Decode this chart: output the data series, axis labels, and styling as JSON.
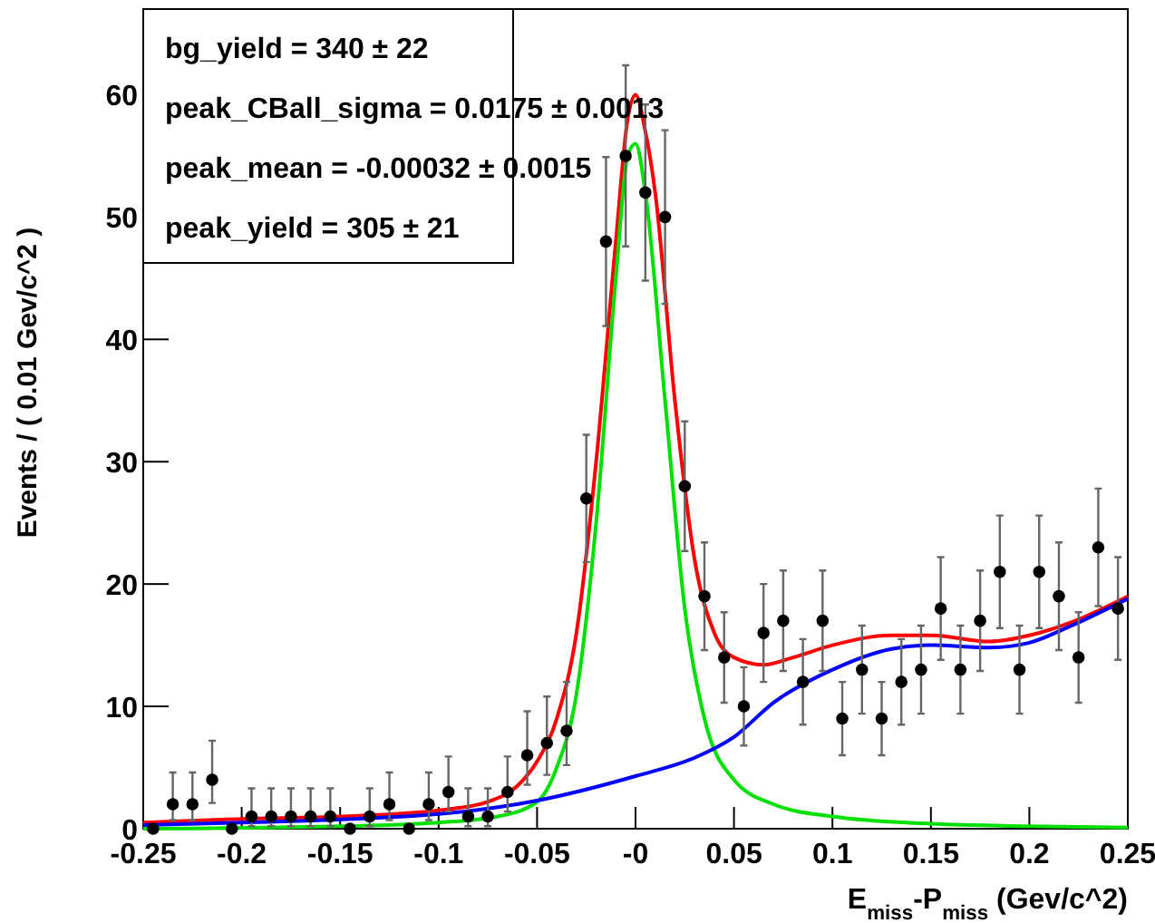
{
  "chart_data": {
    "type": "scatter",
    "xlabel": "E$_{miss}$-P$_{miss}$ (Gev/c^2)",
    "ylabel": "Events / ( 0.01 Gev/c^2 )",
    "xlim": [
      -0.25,
      0.25
    ],
    "xticks": [
      -0.25,
      -0.2,
      -0.15,
      -0.1,
      -0.05,
      {
        "value": 0,
        "label": "-0"
      },
      0.05,
      0.1,
      0.15,
      0.2,
      0.25
    ],
    "ylim": [
      0,
      67
    ],
    "yticks": [
      0,
      10,
      20,
      30,
      40,
      50,
      60
    ],
    "grid": false,
    "annotations": [
      "bg_yield = 340 ± 22",
      "peak_CBall_sigma = 0.0175 ± 0.0013",
      "peak_mean = -0.00032 ± 0.0015",
      "peak_yield = 305 ± 21"
    ],
    "series": [
      {
        "type": "scatter",
        "color": "#000000",
        "marker": "circle",
        "x": [
          -0.245,
          -0.235,
          -0.225,
          -0.215,
          -0.205,
          -0.195,
          -0.185,
          -0.175,
          -0.165,
          -0.155,
          -0.145,
          -0.135,
          -0.125,
          -0.115,
          -0.105,
          -0.095,
          -0.085,
          -0.075,
          -0.065,
          -0.055,
          -0.045,
          -0.035,
          -0.025,
          -0.015,
          -0.005,
          0.005,
          0.015,
          0.025,
          0.035,
          0.045,
          0.055,
          0.065,
          0.075,
          0.085,
          0.095,
          0.105,
          0.115,
          0.125,
          0.135,
          0.145,
          0.155,
          0.165,
          0.175,
          0.185,
          0.195,
          0.205,
          0.215,
          0.225,
          0.235,
          0.245
        ],
        "values": [
          0,
          2,
          2,
          4,
          0,
          1,
          1,
          1,
          1,
          1,
          0,
          1,
          2,
          0,
          2,
          3,
          1,
          1,
          3,
          6,
          7,
          8,
          27,
          48,
          55,
          52,
          50,
          28,
          19,
          14,
          10,
          16,
          17,
          12,
          17,
          9,
          13,
          9,
          12,
          13,
          18,
          13,
          17,
          21,
          13,
          21,
          19,
          14,
          23,
          18
        ],
        "errors": [
          null,
          [
            0.7,
            4.6
          ],
          [
            0.7,
            4.6
          ],
          [
            2.1,
            7.2
          ],
          null,
          [
            0.2,
            3.3
          ],
          [
            0.2,
            3.3
          ],
          [
            0.2,
            3.3
          ],
          [
            0.2,
            3.3
          ],
          [
            0.2,
            3.3
          ],
          null,
          [
            0.2,
            3.3
          ],
          [
            0.7,
            4.6
          ],
          null,
          [
            0.7,
            4.6
          ],
          [
            1.4,
            5.9
          ],
          [
            0.2,
            3.3
          ],
          [
            0.2,
            3.3
          ],
          [
            1.4,
            5.9
          ],
          [
            3.6,
            9.6
          ],
          [
            4.4,
            10.8
          ],
          [
            5.2,
            12
          ],
          5.2,
          6.9,
          7.4,
          7.2,
          7.1,
          5.3,
          4.4,
          3.7,
          3.2,
          4,
          4.1,
          3.5,
          4.1,
          3,
          3.6,
          3,
          3.5,
          3.6,
          4.2,
          3.6,
          4.1,
          4.6,
          3.6,
          4.6,
          4.4,
          3.7,
          4.8,
          4.2
        ]
      },
      {
        "type": "line",
        "color": "#ff0000",
        "marker": "none",
        "line_style": "solid",
        "x": [
          -0.25,
          -0.2,
          -0.15,
          -0.1,
          -0.075,
          -0.06,
          -0.05,
          -0.04,
          -0.03,
          -0.02,
          -0.01,
          -0.004,
          0,
          0.005,
          0.01,
          0.02,
          0.03,
          0.04,
          0.05,
          0.065,
          0.08,
          0.1,
          0.13,
          0.15,
          0.18,
          0.2,
          0.22,
          0.25
        ],
        "values": [
          0.5,
          0.8,
          1,
          1.5,
          2.2,
          3.5,
          5.5,
          9,
          16,
          30,
          48,
          58,
          60,
          57,
          52,
          35,
          22,
          16,
          14,
          13.4,
          14,
          15,
          15.8,
          15.8,
          15.3,
          15.8,
          16.8,
          19
        ]
      },
      {
        "type": "line",
        "color": "#00e000",
        "marker": "none",
        "line_style": "solid",
        "x": [
          -0.25,
          -0.15,
          -0.1,
          -0.07,
          -0.05,
          -0.04,
          -0.03,
          -0.02,
          -0.01,
          -0.004,
          0,
          0.005,
          0.015,
          0.025,
          0.035,
          0.05,
          0.07,
          0.1,
          0.15,
          0.2,
          0.25
        ],
        "values": [
          0,
          0.2,
          0.5,
          1,
          2.2,
          5,
          11,
          25,
          45,
          55,
          56,
          52,
          35,
          18,
          9,
          4,
          2,
          1,
          0.4,
          0.2,
          0.1
        ]
      },
      {
        "type": "line",
        "color": "#0000ff",
        "marker": "none",
        "line_style": "solid",
        "x": [
          -0.25,
          -0.2,
          -0.1,
          -0.05,
          0,
          0.03,
          0.05,
          0.07,
          0.1,
          0.13,
          0.15,
          0.18,
          0.2,
          0.22,
          0.25
        ],
        "values": [
          0.3,
          0.5,
          1.2,
          2.3,
          4.3,
          5.8,
          7.5,
          10.3,
          13,
          14.7,
          15,
          14.8,
          15.2,
          16.5,
          18.8
        ]
      }
    ]
  }
}
